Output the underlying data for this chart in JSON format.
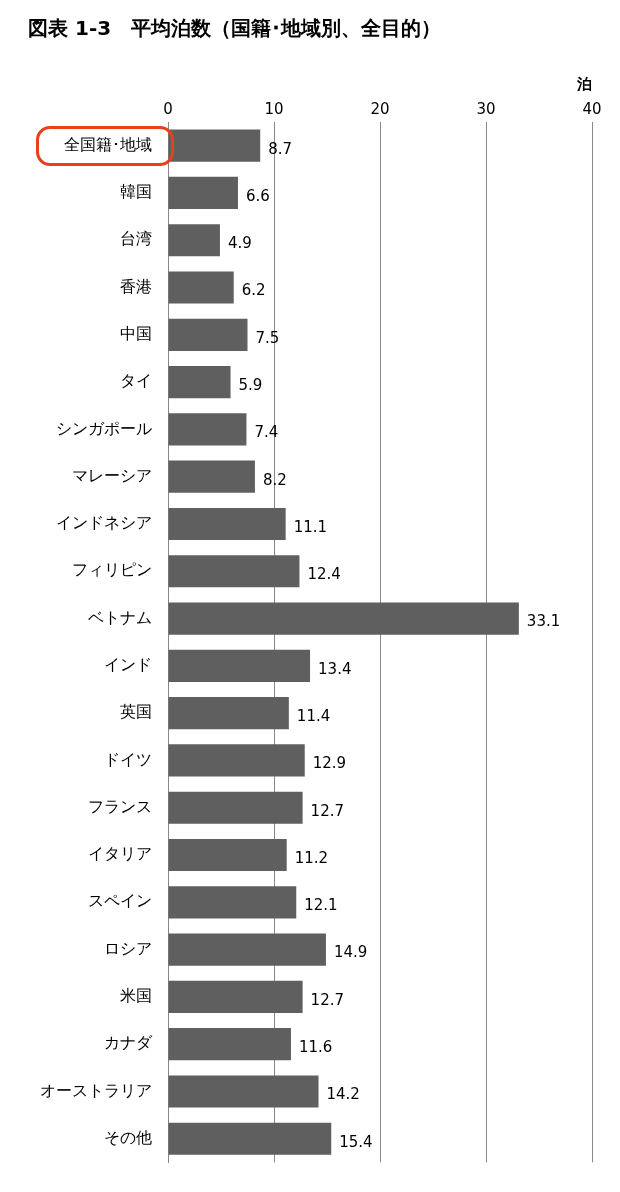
{
  "chart_data": {
    "type": "bar",
    "orientation": "horizontal",
    "title": "図表 1-3　平均泊数（国籍･地域別、全目的）",
    "xlabel": "泊",
    "categories": [
      "全国籍･地域",
      "韓国",
      "台湾",
      "香港",
      "中国",
      "タイ",
      "シンガポール",
      "マレーシア",
      "インドネシア",
      "フィリピン",
      "ベトナム",
      "インド",
      "英国",
      "ドイツ",
      "フランス",
      "イタリア",
      "スペイン",
      "ロシア",
      "米国",
      "カナダ",
      "オーストラリア",
      "その他"
    ],
    "values": [
      8.7,
      6.6,
      4.9,
      6.2,
      7.5,
      5.9,
      7.4,
      8.2,
      11.1,
      12.4,
      33.1,
      13.4,
      11.4,
      12.9,
      12.7,
      11.2,
      12.1,
      14.9,
      12.7,
      11.6,
      14.2,
      15.4
    ],
    "color": "#5f5f5f",
    "xlim": [
      0,
      40
    ],
    "xticks": [
      0,
      10,
      20,
      30,
      40
    ],
    "grid": "x",
    "legend": false,
    "data_labels": true
  }
}
